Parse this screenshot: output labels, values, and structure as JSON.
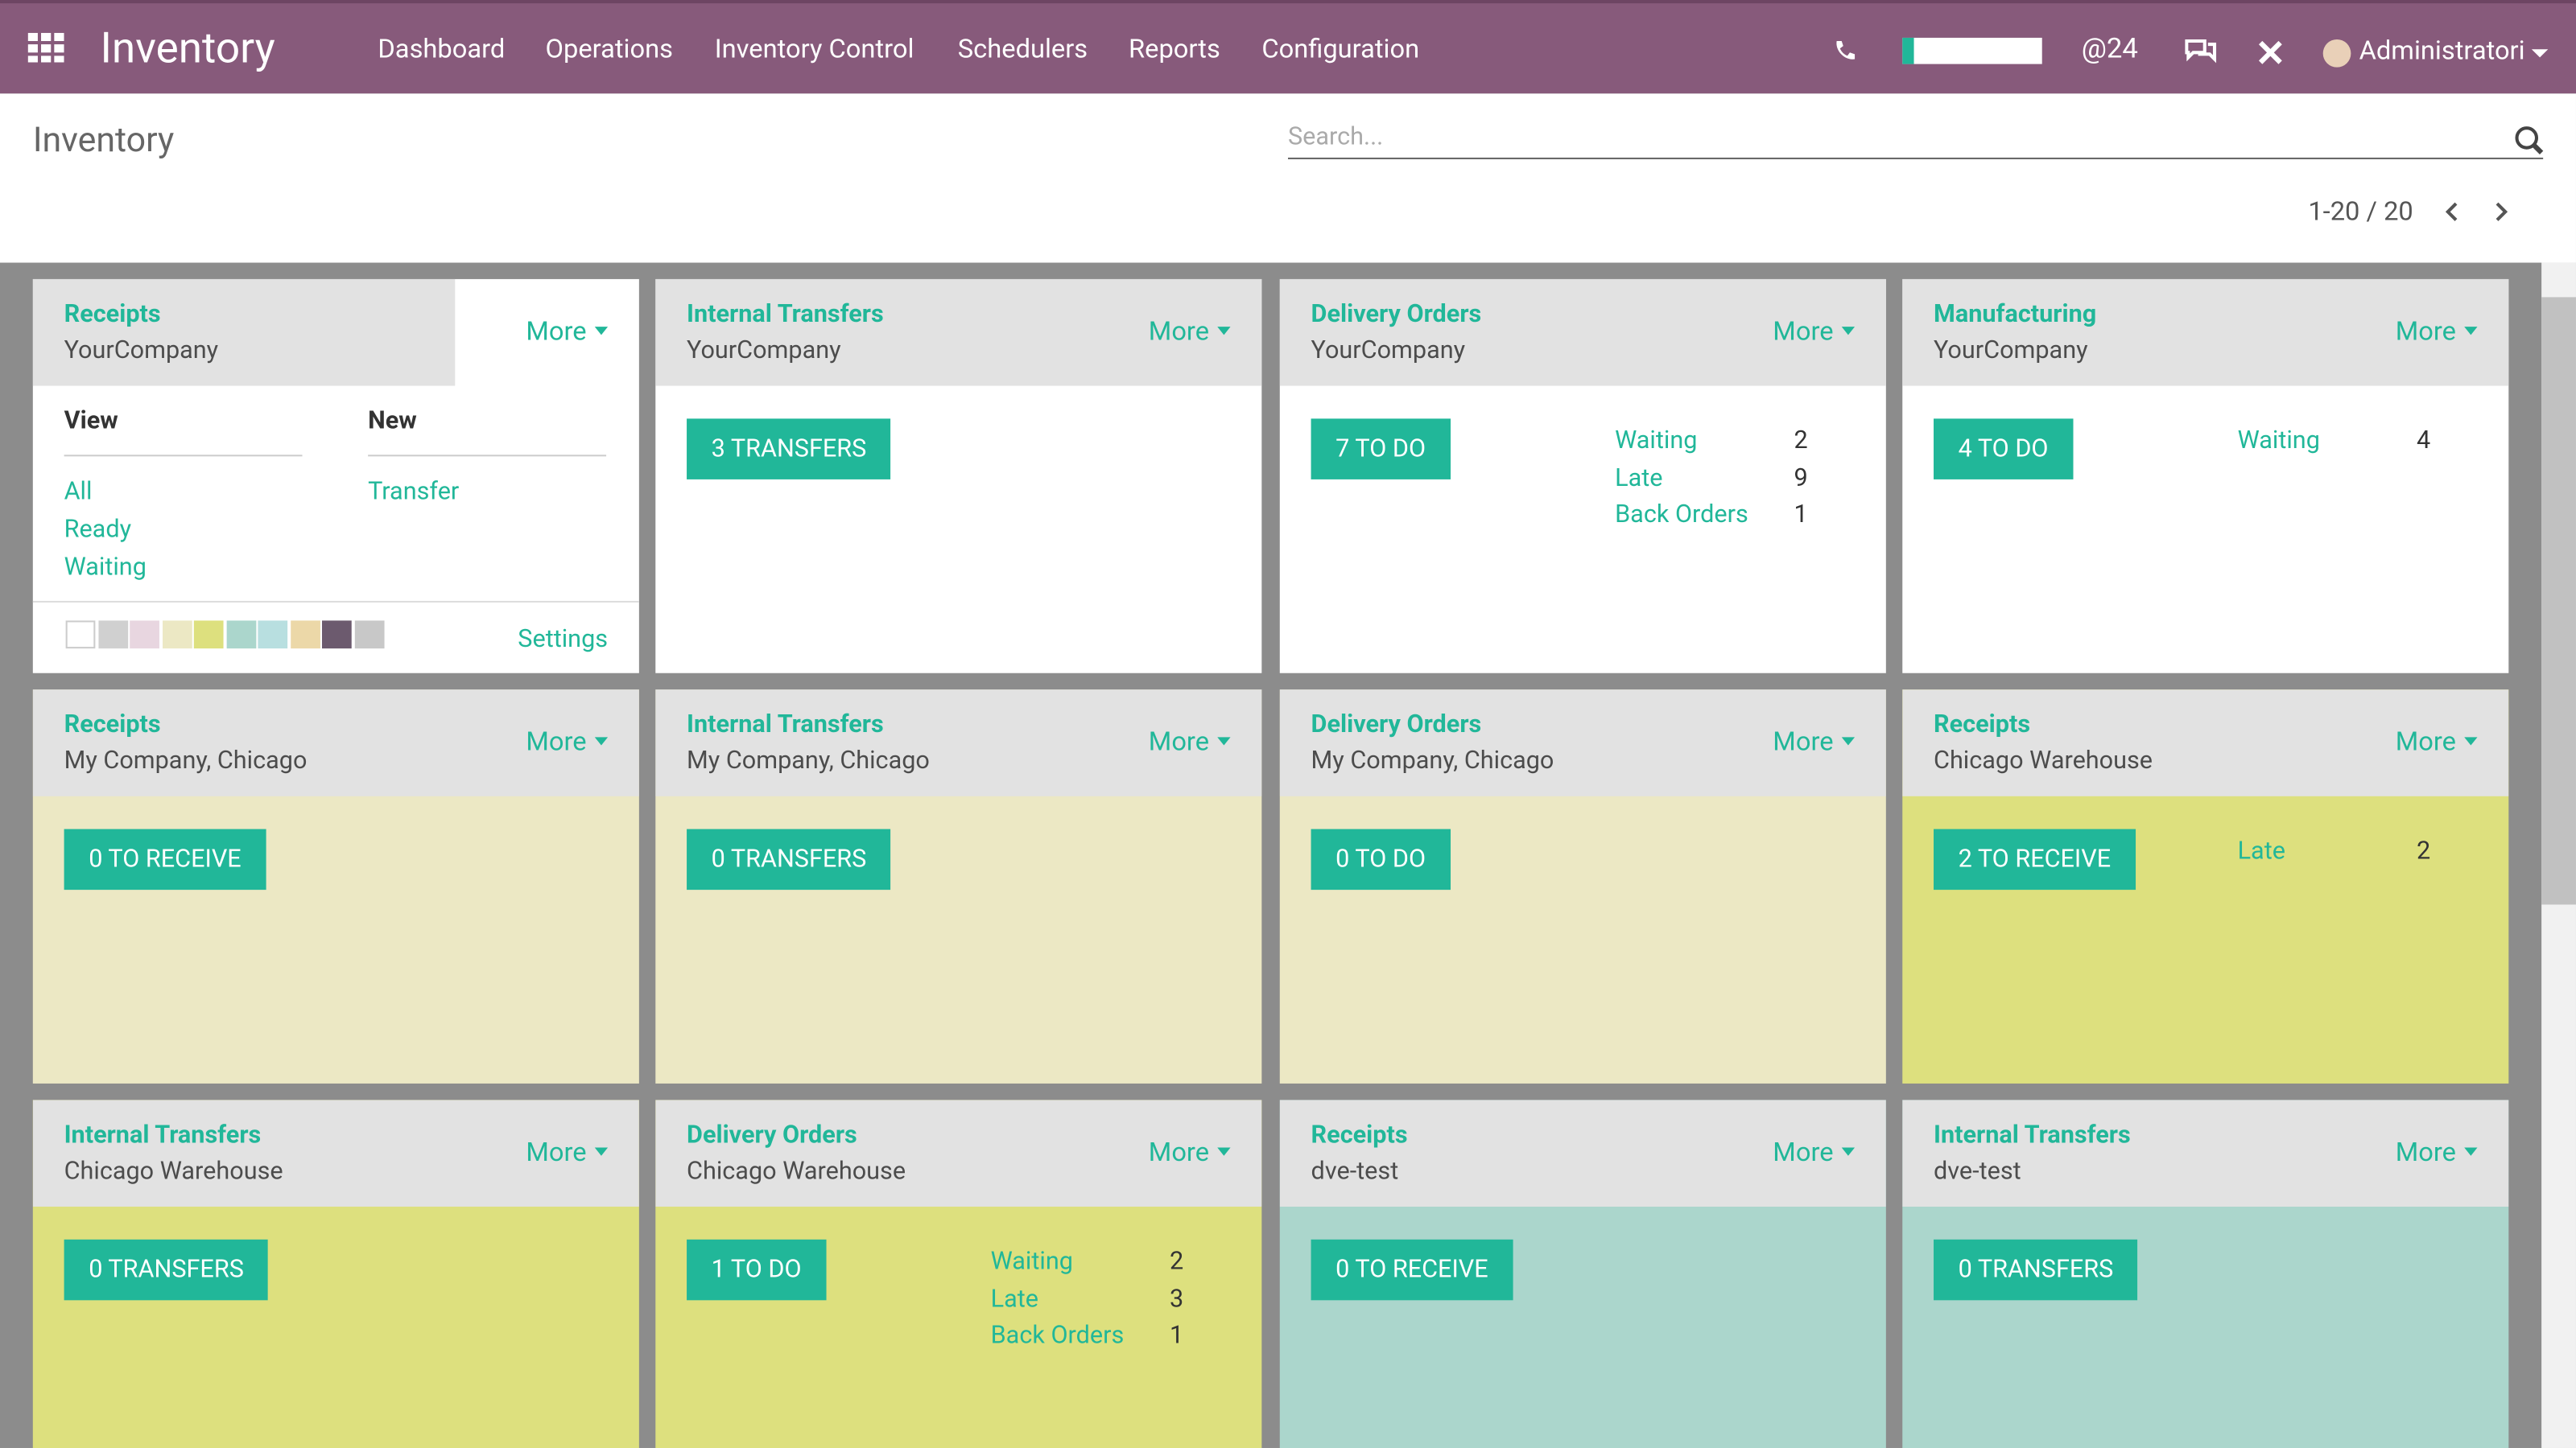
{
  "navbar": {
    "app": "Inventory",
    "menu": [
      "Dashboard",
      "Operations",
      "Inventory Control",
      "Schedulers",
      "Reports",
      "Configuration"
    ],
    "mentions": 24,
    "user": "Administratori"
  },
  "control_panel": {
    "title": "Inventory",
    "search_placeholder": "Search...",
    "pager": "1-20 / 20"
  },
  "more_label": "More",
  "dropdown": {
    "view_title": "View",
    "view_items": [
      "All",
      "Ready",
      "Waiting"
    ],
    "new_title": "New",
    "new_items": [
      "Transfer"
    ],
    "settings": "Settings"
  },
  "cards": [
    {
      "title": "Receipts",
      "company": "YourCompany",
      "color": "#ffffff",
      "stats": []
    },
    {
      "title": "Internal Transfers",
      "company": "YourCompany",
      "button": "3 TRANSFERS",
      "color": "#ffffff",
      "stats": []
    },
    {
      "title": "Delivery Orders",
      "company": "YourCompany",
      "button": "7 TO DO",
      "color": "#ffffff",
      "stats": [
        {
          "label": "Waiting",
          "value": 2
        },
        {
          "label": "Late",
          "value": 9
        },
        {
          "label": "Back Orders",
          "value": 1
        }
      ]
    },
    {
      "title": "Manufacturing",
      "company": "YourCompany",
      "button": "4 TO DO",
      "color": "#ffffff",
      "stats": [
        {
          "label": "Waiting",
          "value": 4
        }
      ]
    },
    {
      "title": "Receipts",
      "company": "My Company, Chicago",
      "button": "0 TO RECEIVE",
      "color": "#ece8c4",
      "stats": []
    },
    {
      "title": "Internal Transfers",
      "company": "My Company, Chicago",
      "button": "0 TRANSFERS",
      "color": "#ece8c4",
      "stats": []
    },
    {
      "title": "Delivery Orders",
      "company": "My Company, Chicago",
      "button": "0 TO DO",
      "color": "#ece8c4",
      "stats": []
    },
    {
      "title": "Receipts",
      "company": "Chicago Warehouse",
      "button": "2 TO RECEIVE",
      "color": "#dde07e",
      "stats": [
        {
          "label": "Late",
          "value": 2
        }
      ]
    },
    {
      "title": "Internal Transfers",
      "company": "Chicago Warehouse",
      "button": "0 TRANSFERS",
      "color": "#dde07e",
      "stats": []
    },
    {
      "title": "Delivery Orders",
      "company": "Chicago Warehouse",
      "button": "1 TO DO",
      "color": "#dde07e",
      "stats": [
        {
          "label": "Waiting",
          "value": 2
        },
        {
          "label": "Late",
          "value": 3
        },
        {
          "label": "Back Orders",
          "value": 1
        }
      ]
    },
    {
      "title": "Receipts",
      "company": "dve-test",
      "button": "0 TO RECEIVE",
      "color": "#abd6cc",
      "stats": []
    },
    {
      "title": "Internal Transfers",
      "company": "dve-test",
      "button": "0 TRANSFERS",
      "color": "#abd6cc",
      "stats": []
    }
  ]
}
